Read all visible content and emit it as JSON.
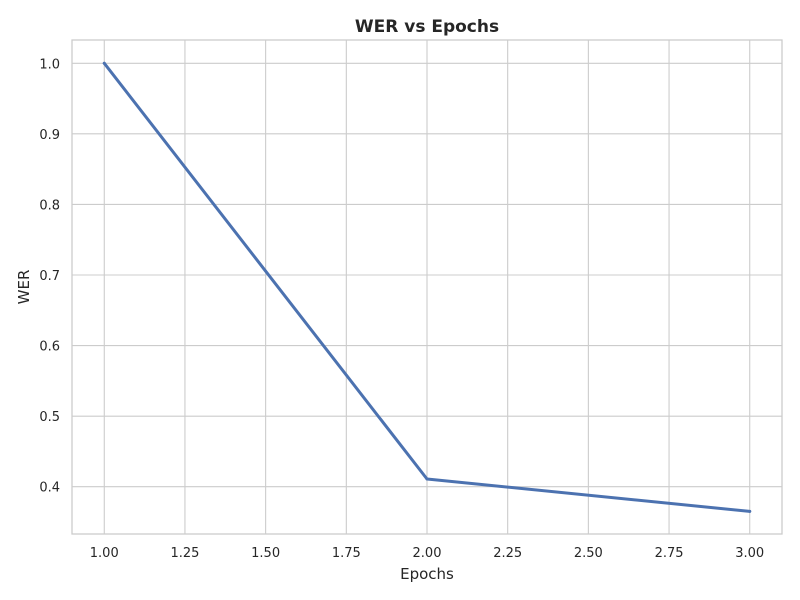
{
  "chart_data": {
    "type": "line",
    "title": "WER vs Epochs",
    "xlabel": "Epochs",
    "ylabel": "WER",
    "x": [
      1,
      2,
      3
    ],
    "series": [
      {
        "values": [
          1.0,
          0.411,
          0.365
        ]
      }
    ],
    "xlim": [
      0.9,
      3.1
    ],
    "ylim": [
      0.333,
      1.033
    ],
    "xticks": [
      "1.00",
      "1.25",
      "1.50",
      "1.75",
      "2.00",
      "2.25",
      "2.50",
      "2.75",
      "3.00"
    ],
    "yticks": [
      "0.4",
      "0.5",
      "0.6",
      "0.7",
      "0.8",
      "0.9",
      "1.0"
    ],
    "grid": true,
    "legend": "none",
    "colors": {
      "line": "#4c72b0",
      "grid": "#cccccc",
      "text": "#262626"
    }
  }
}
